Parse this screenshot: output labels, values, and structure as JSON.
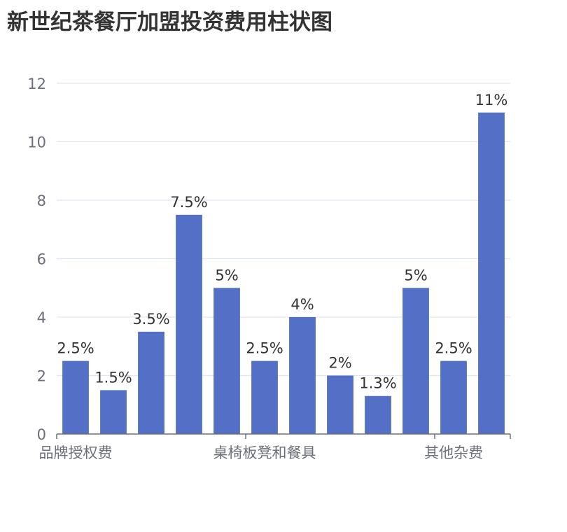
{
  "chart_data": {
    "type": "bar",
    "title": "新世纪茶餐厅加盟投资费用柱状图",
    "categories": [
      "品牌授权费",
      "",
      "",
      "",
      "",
      "桌椅板凳和餐具",
      "",
      "",
      "",
      "",
      "其他杂费",
      ""
    ],
    "values": [
      2.5,
      1.5,
      3.5,
      7.5,
      5,
      2.5,
      4,
      2,
      1.3,
      5,
      2.5,
      11
    ],
    "data_labels": [
      "2.5%",
      "1.5%",
      "3.5%",
      "7.5%",
      "5%",
      "2.5%",
      "4%",
      "2%",
      "1.3%",
      "5%",
      "2.5%",
      "11%"
    ],
    "y_ticks": [
      "0",
      "2",
      "4",
      "6",
      "8",
      "10",
      "12"
    ],
    "ylim": [
      0,
      12
    ],
    "xlabel": "",
    "ylabel": "",
    "grid": true,
    "colors": {
      "bar": "#5470c6",
      "grid": "#e0e6f1",
      "axis": "#6e7079"
    }
  }
}
